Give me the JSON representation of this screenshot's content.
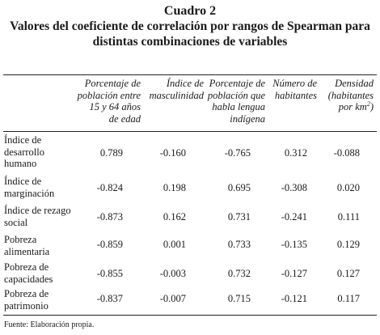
{
  "title": "Cuadro 2",
  "subtitle_line1": "Valores del coeficiente de correlación por rangos de Spearman para",
  "subtitle_line2": "distintas combinaciones de variables",
  "columns": [
    [
      "Porcentaje de",
      "población entre",
      "15 y 64 años",
      "de edad"
    ],
    [
      "Índice de",
      "masculinidad"
    ],
    [
      "Porcentaje de",
      "población que",
      "habla lengua",
      "indígena"
    ],
    [
      "Número de",
      "habitantes"
    ],
    [
      "Densidad",
      "(habitantes",
      "por km"
    ]
  ],
  "density_sup": "2",
  "density_close": ")",
  "rows": [
    {
      "label": [
        "Índice de",
        "desarrollo",
        "humano"
      ],
      "values": [
        "0.789",
        "-0.160",
        "-0.765",
        "0.312",
        "-0.088"
      ]
    },
    {
      "label": [
        "Índice de",
        "marginación"
      ],
      "values": [
        "-0.824",
        "0.198",
        "0.695",
        "-0.308",
        "0.020"
      ]
    },
    {
      "label": [
        "Índice de rezago",
        "social"
      ],
      "values": [
        "-0.873",
        "0.162",
        "0.731",
        "-0.241",
        "0.111"
      ]
    },
    {
      "label": [
        "Pobreza",
        "alimentaria"
      ],
      "values": [
        "-0.859",
        "0.001",
        "0.733",
        "-0.135",
        "0.129"
      ]
    },
    {
      "label": [
        "Pobreza de",
        "capacidades"
      ],
      "values": [
        "-0.855",
        "-0.003",
        "0.732",
        "-0.127",
        "0.127"
      ]
    },
    {
      "label": [
        "Pobreza de",
        "patrimonio"
      ],
      "values": [
        "-0.837",
        "-0.007",
        "0.715",
        "-0.121",
        "0.117"
      ]
    }
  ],
  "source": "Fuente: Elaboración propia."
}
